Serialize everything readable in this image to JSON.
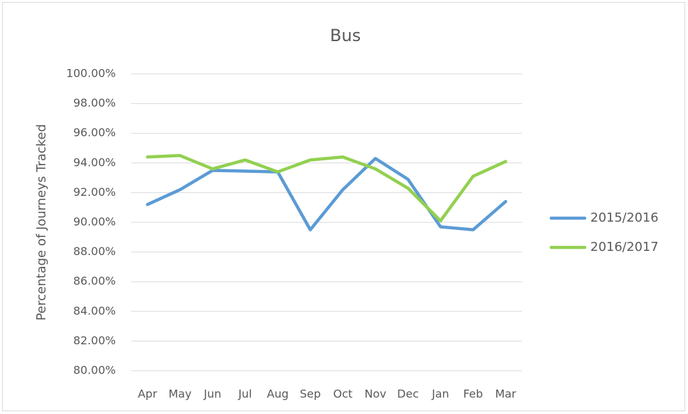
{
  "chart_data": {
    "type": "line",
    "title": "Bus",
    "y_label": "Percentage of Journeys Tracked",
    "categories": [
      "Apr",
      "May",
      "Jun",
      "Jul",
      "Aug",
      "Sep",
      "Oct",
      "Nov",
      "Dec",
      "Jan",
      "Feb",
      "Mar"
    ],
    "series": [
      {
        "name": "2015/2016",
        "color": "#5b9bd5",
        "values": [
          91.2,
          92.2,
          93.5,
          93.45,
          93.4,
          89.5,
          92.2,
          94.3,
          92.9,
          89.7,
          89.5,
          91.4
        ]
      },
      {
        "name": "2016/2017",
        "color": "#92d050",
        "values": [
          94.4,
          94.5,
          93.6,
          94.2,
          93.4,
          94.2,
          94.4,
          93.6,
          92.3,
          90.1,
          93.1,
          94.1
        ]
      }
    ],
    "ylim": [
      80,
      100
    ],
    "yticks": [
      {
        "value": 80,
        "label": "80.00%"
      },
      {
        "value": 82,
        "label": "82.00%"
      },
      {
        "value": 84,
        "label": "84.00%"
      },
      {
        "value": 86,
        "label": "86.00%"
      },
      {
        "value": 88,
        "label": "88.00%"
      },
      {
        "value": 90,
        "label": "90.00%"
      },
      {
        "value": 92,
        "label": "92.00%"
      },
      {
        "value": 94,
        "label": "94.00%"
      },
      {
        "value": 96,
        "label": "96.00%"
      },
      {
        "value": 98,
        "label": "98.00%"
      },
      {
        "value": 100,
        "label": "100.00%"
      }
    ],
    "grid": true,
    "legend": "right"
  }
}
